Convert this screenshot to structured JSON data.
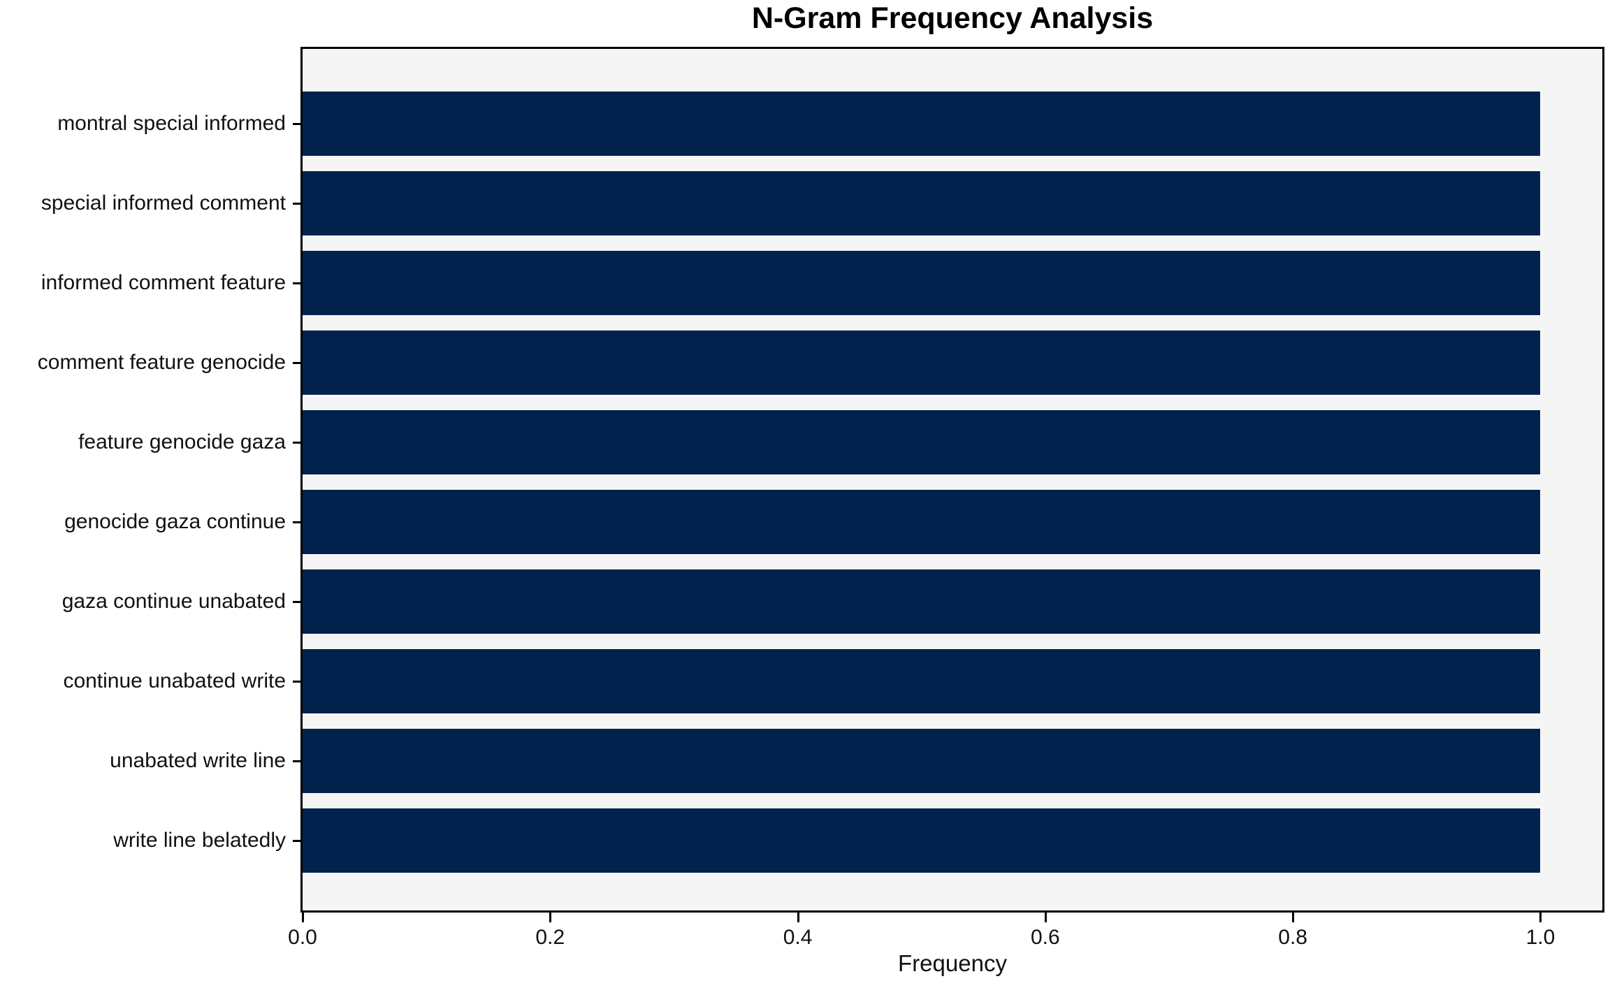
{
  "chart_data": {
    "type": "bar",
    "orientation": "horizontal",
    "title": "N-Gram Frequency Analysis",
    "xlabel": "Frequency",
    "ylabel": "",
    "categories": [
      "montral special informed",
      "special informed comment",
      "informed comment feature",
      "comment feature genocide",
      "feature genocide gaza",
      "genocide gaza continue",
      "gaza continue unabated",
      "continue unabated write",
      "unabated write line",
      "write line belatedly"
    ],
    "values": [
      1.0,
      1.0,
      1.0,
      1.0,
      1.0,
      1.0,
      1.0,
      1.0,
      1.0,
      1.0
    ],
    "xlim": [
      0,
      1.05
    ],
    "xticks": [
      0.0,
      0.2,
      0.4,
      0.6,
      0.8,
      1.0
    ],
    "xtick_labels": [
      "0.0",
      "0.2",
      "0.4",
      "0.6",
      "0.8",
      "1.0"
    ],
    "grid": false,
    "legend": false,
    "bar_color": "#01224d",
    "plot_bg_color": "#f5f5f6",
    "figure_bg_color": "#ffffff",
    "spine_color": "#000000"
  }
}
